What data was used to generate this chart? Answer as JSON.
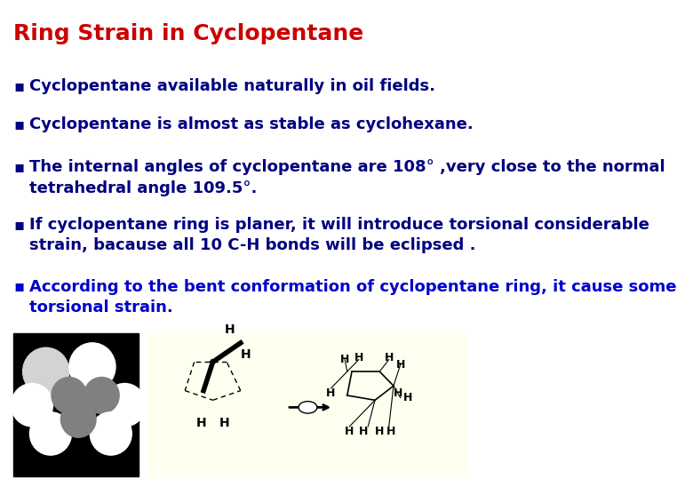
{
  "title": "Ring Strain in Cyclopentane",
  "title_color": "#CC0000",
  "title_fontsize": 18,
  "title_bold": true,
  "bullet_symbol": "§",
  "bullets": [
    {
      "text": "Cyclopentane available naturally in oil fields.",
      "color": "#000080",
      "bold": true,
      "indent": 0
    },
    {
      "text": "Cyclopentane is almost as stable as cyclohexane.",
      "color": "#000080",
      "bold": true,
      "indent": 0
    },
    {
      "text": "The internal angles of cyclopentane are 108° ,very close to the normal\ntetrahedral angle 109.5°.",
      "color": "#000080",
      "bold": true,
      "indent": 0
    },
    {
      "text": "If cyclopentane ring is planer, it will introduce torsional considerable\nstrain, bacause all 10 C-H bonds will be eclipsed .",
      "color": "#000080",
      "bold": true,
      "indent": 0
    },
    {
      "text": "According to the bent conformation of cyclopentane ring, it cause some\ntorsional strain.",
      "color": "#0000CC",
      "bold": true,
      "indent": 0
    }
  ],
  "bg_color": "#FFFFFF",
  "image_panel_bg": "#FFFFF0",
  "bullet_char": "§",
  "bullet_fontsize": 13,
  "left_panel_bg": "#000000"
}
